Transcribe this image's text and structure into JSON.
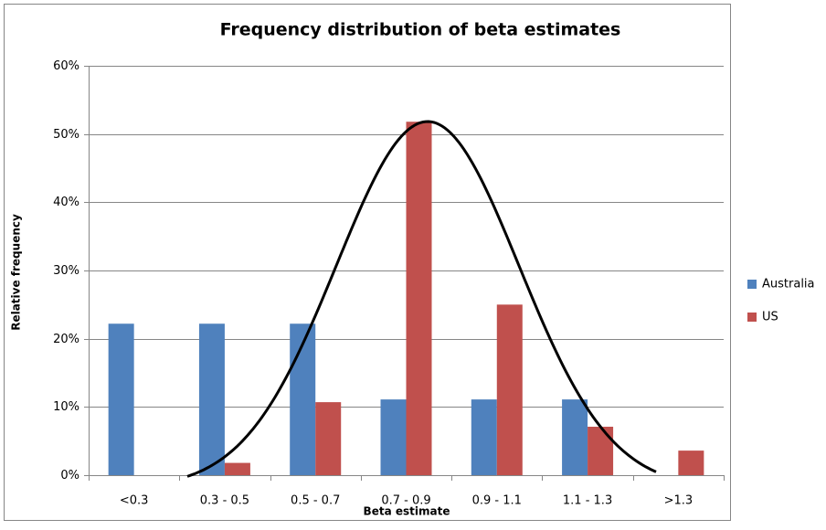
{
  "chart_data": {
    "type": "bar",
    "title": "Frequency distribution  of beta estimates",
    "x_label": "Beta estimate",
    "y_label": "Relative frequency",
    "categories": [
      "<0.3",
      "0.3 - 0.5",
      "0.5 - 0.7",
      "0.7 - 0.9",
      "0.9 - 1.1",
      "1.1 - 1.3",
      ">1.3"
    ],
    "series": [
      {
        "name": "Australia",
        "color": "#4f81bd",
        "values": [
          22.2,
          22.2,
          22.2,
          11.1,
          11.1,
          11.1,
          0
        ]
      },
      {
        "name": "US",
        "color": "#c0504d",
        "values": [
          0,
          1.8,
          10.7,
          51.8,
          25,
          7.1,
          3.6
        ]
      }
    ],
    "ylim": [
      0,
      60
    ],
    "yticks": [
      {
        "value": 0,
        "label": "0%"
      },
      {
        "value": 10,
        "label": "10%"
      },
      {
        "value": 20,
        "label": "20%"
      },
      {
        "value": 30,
        "label": "30%"
      },
      {
        "value": 40,
        "label": "40%"
      },
      {
        "value": 50,
        "label": "50%"
      },
      {
        "value": 60,
        "label": "60%"
      }
    ],
    "grid": true,
    "legend": "right"
  }
}
